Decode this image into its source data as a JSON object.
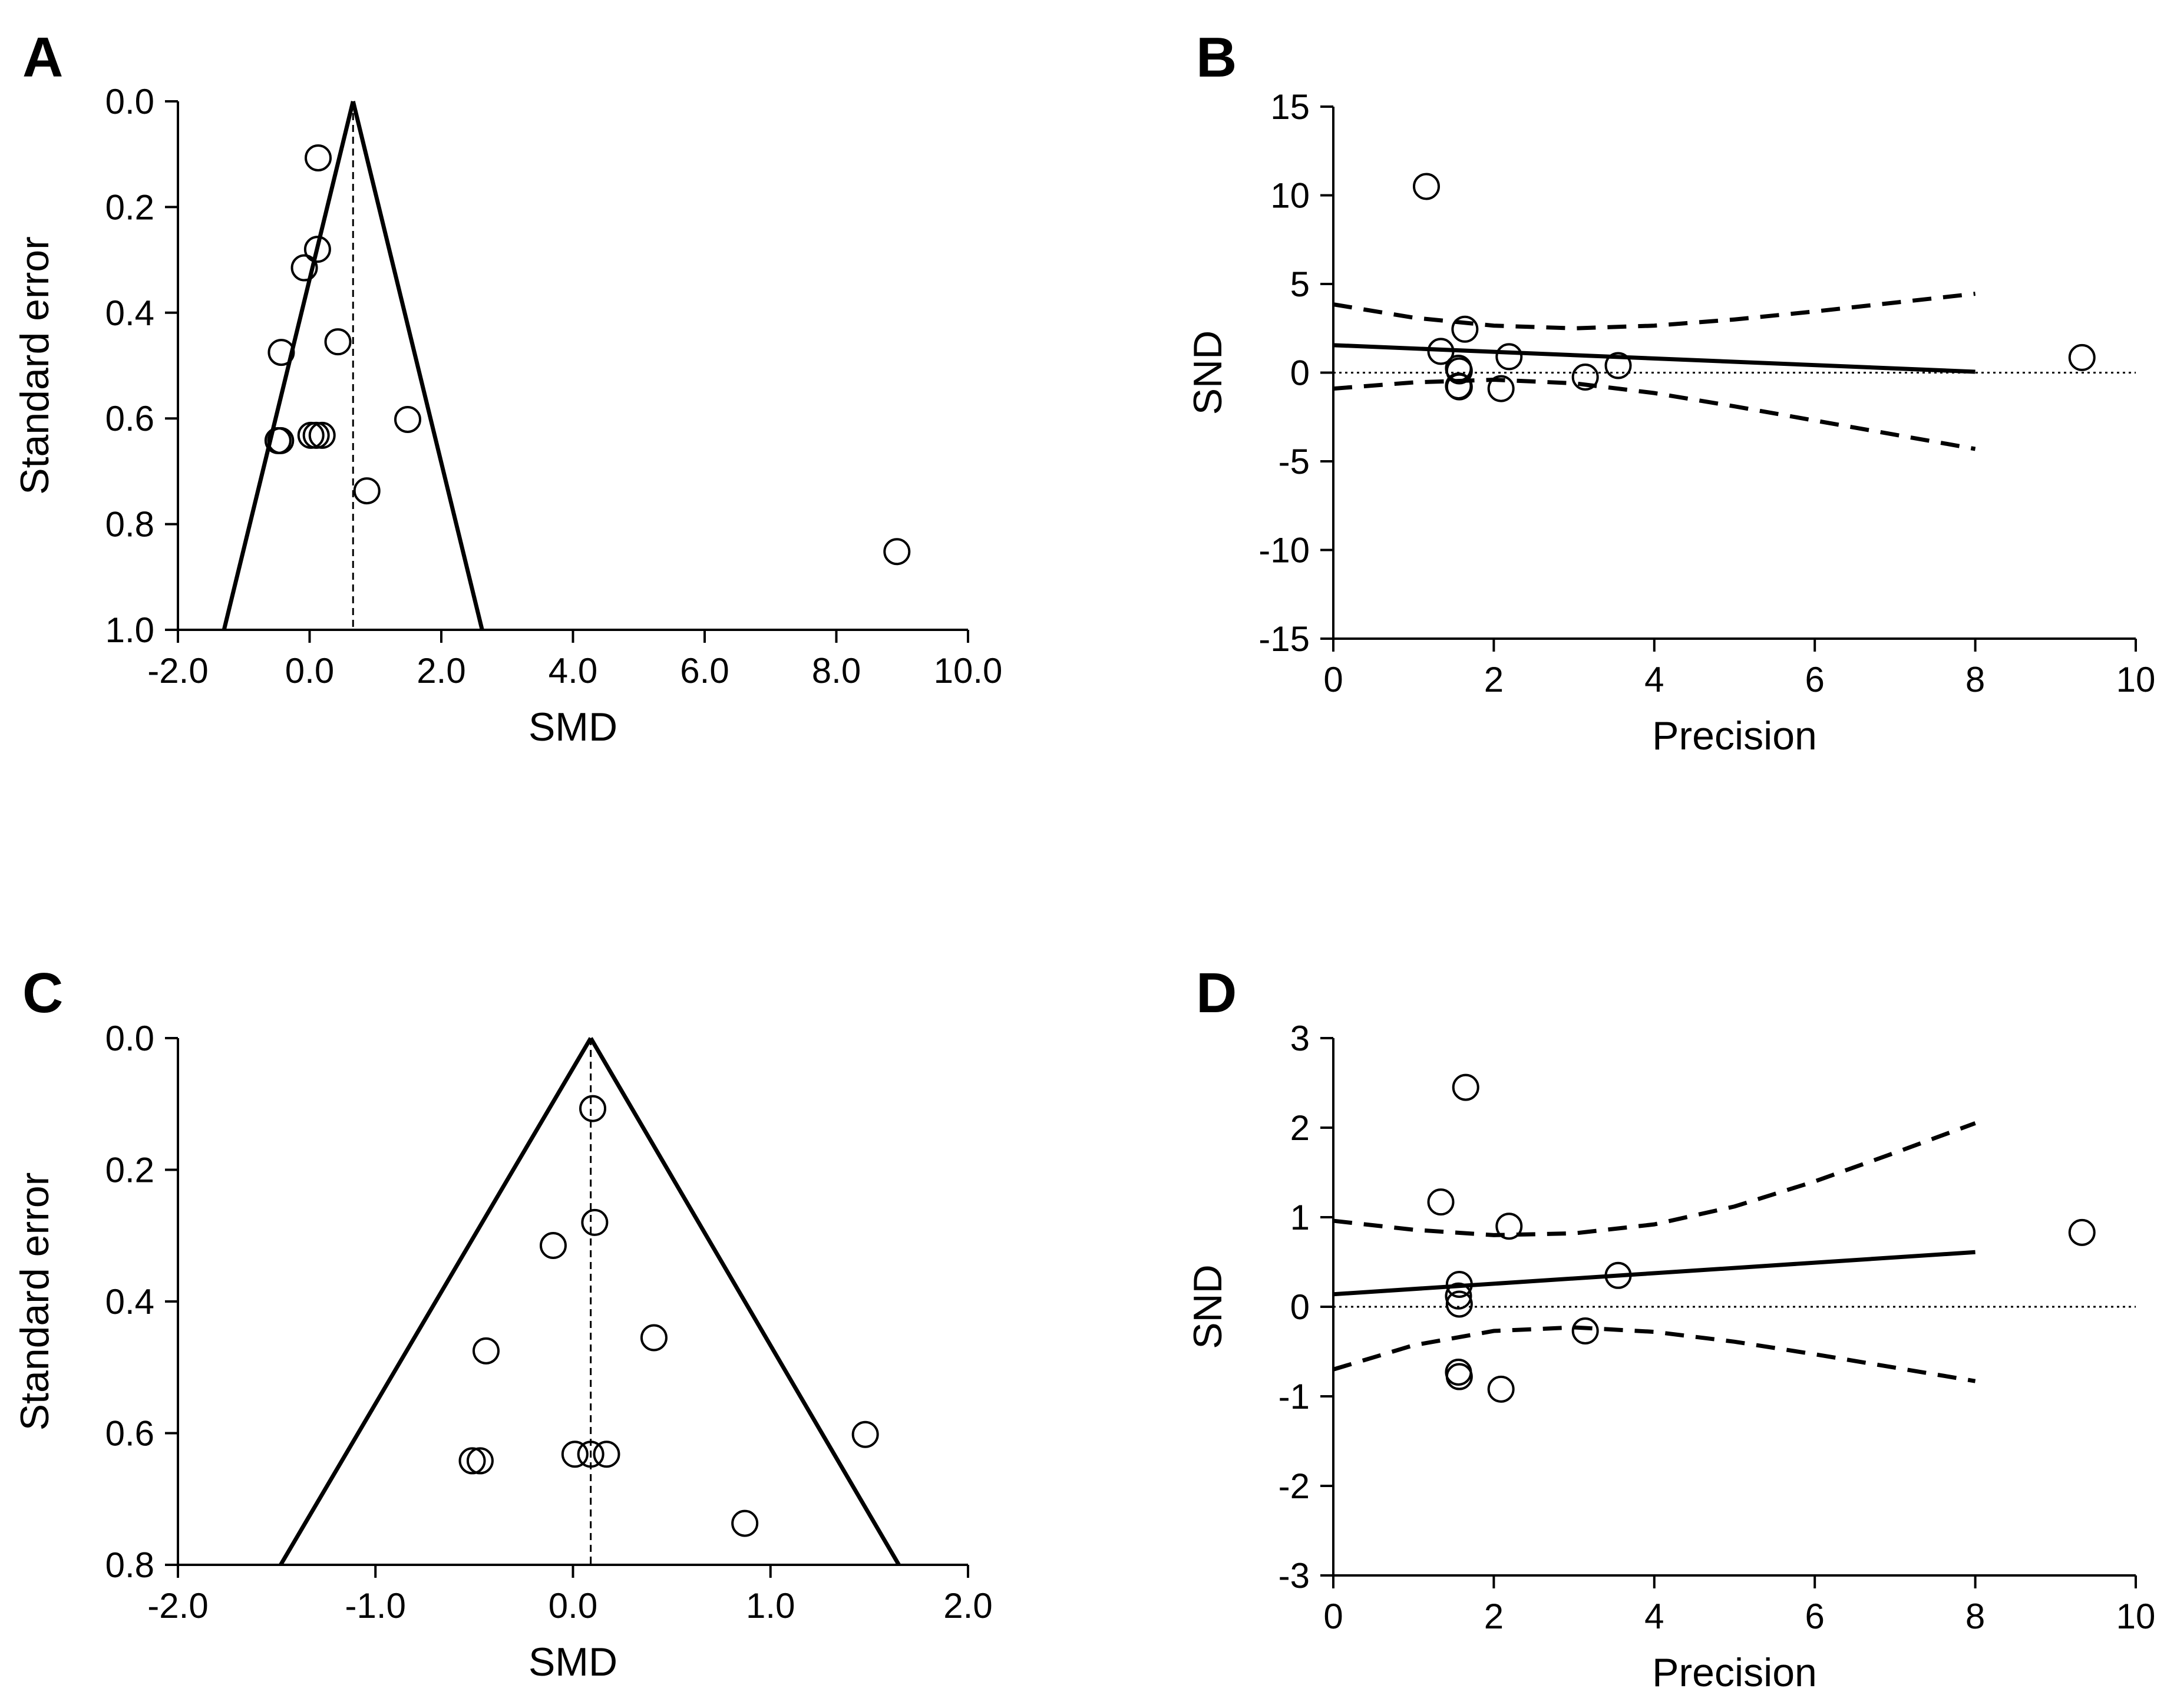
{
  "colors": {
    "ink": "#000000",
    "background": "#ffffff"
  },
  "chart_data": [
    {
      "panel": "A",
      "type": "scatter",
      "subtype": "funnel",
      "xlabel": "SMD",
      "ylabel": "Standard error",
      "xlim": [
        -2.0,
        10.0
      ],
      "ylim": [
        0.0,
        1.0
      ],
      "y_inverted": true,
      "xticks": [
        -2.0,
        0.0,
        2.0,
        4.0,
        6.0,
        8.0,
        10.0
      ],
      "xtick_labels": [
        "-2.0",
        "0.0",
        "2.0",
        "4.0",
        "6.0",
        "8.0",
        "10.0"
      ],
      "yticks": [
        0.0,
        0.2,
        0.4,
        0.6,
        0.8,
        1.0
      ],
      "ytick_labels": [
        "0.0",
        "0.2",
        "0.4",
        "0.6",
        "0.8",
        "1.0"
      ],
      "points": [
        {
          "x": 0.13,
          "y": 0.107
        },
        {
          "x": 0.12,
          "y": 0.28
        },
        {
          "x": -0.08,
          "y": 0.315
        },
        {
          "x": 0.43,
          "y": 0.455
        },
        {
          "x": -0.43,
          "y": 0.475
        },
        {
          "x": 1.49,
          "y": 0.602
        },
        {
          "x": 0.02,
          "y": 0.632
        },
        {
          "x": 0.1,
          "y": 0.632
        },
        {
          "x": 0.19,
          "y": 0.632
        },
        {
          "x": -0.48,
          "y": 0.642
        },
        {
          "x": -0.44,
          "y": 0.642
        },
        {
          "x": 0.87,
          "y": 0.737
        },
        {
          "x": 8.92,
          "y": 0.852
        }
      ],
      "funnel_apex": {
        "x": 0.66,
        "y": 0.0
      },
      "funnel_left_base": {
        "x": -1.3,
        "y": 1.0
      },
      "funnel_right_base": {
        "x": 2.62,
        "y": 1.0
      },
      "reference_line_x": 0.66
    },
    {
      "panel": "B",
      "type": "scatter",
      "subtype": "egger-regression",
      "xlabel": "Precision",
      "ylabel": "SND",
      "xlim": [
        0,
        10
      ],
      "ylim": [
        -15,
        15
      ],
      "xticks": [
        0,
        2,
        4,
        6,
        8,
        10
      ],
      "xtick_labels": [
        "0",
        "2",
        "4",
        "6",
        "8",
        "10"
      ],
      "yticks": [
        15,
        10,
        5,
        0,
        -5,
        -10,
        -15
      ],
      "ytick_labels": [
        "15",
        "10",
        "5",
        "0",
        "-5",
        "-10",
        "-15"
      ],
      "points": [
        {
          "x": 1.16,
          "y": 10.5
        },
        {
          "x": 1.34,
          "y": 1.2
        },
        {
          "x": 1.64,
          "y": 2.45
        },
        {
          "x": 1.56,
          "y": 0.25
        },
        {
          "x": 1.57,
          "y": 0.1
        },
        {
          "x": 1.56,
          "y": -0.75
        },
        {
          "x": 1.57,
          "y": -0.8
        },
        {
          "x": 2.09,
          "y": -0.9
        },
        {
          "x": 2.19,
          "y": 0.9
        },
        {
          "x": 3.14,
          "y": -0.25
        },
        {
          "x": 3.55,
          "y": 0.4
        },
        {
          "x": 9.33,
          "y": 0.85
        }
      ],
      "regression_line": [
        {
          "x": 0,
          "y": 1.55
        },
        {
          "x": 8,
          "y": 0.05
        }
      ],
      "ci_upper": [
        {
          "x": 0,
          "y": 3.85
        },
        {
          "x": 1,
          "y": 3.1
        },
        {
          "x": 2,
          "y": 2.65
        },
        {
          "x": 3,
          "y": 2.5
        },
        {
          "x": 4,
          "y": 2.65
        },
        {
          "x": 5,
          "y": 3.0
        },
        {
          "x": 6,
          "y": 3.45
        },
        {
          "x": 7,
          "y": 3.95
        },
        {
          "x": 8,
          "y": 4.45
        }
      ],
      "ci_lower": [
        {
          "x": 0,
          "y": -0.9
        },
        {
          "x": 1,
          "y": -0.55
        },
        {
          "x": 2,
          "y": -0.4
        },
        {
          "x": 3,
          "y": -0.6
        },
        {
          "x": 4,
          "y": -1.15
        },
        {
          "x": 5,
          "y": -1.9
        },
        {
          "x": 6,
          "y": -2.7
        },
        {
          "x": 7,
          "y": -3.5
        },
        {
          "x": 8,
          "y": -4.3
        }
      ],
      "reference_line_y": 0
    },
    {
      "panel": "C",
      "type": "scatter",
      "subtype": "funnel",
      "xlabel": "SMD",
      "ylabel": "Standard error",
      "xlim": [
        -2.0,
        2.0
      ],
      "ylim": [
        0.0,
        0.8
      ],
      "y_inverted": true,
      "xticks": [
        -2.0,
        -1.0,
        0.0,
        1.0,
        2.0
      ],
      "xtick_labels": [
        "-2.0",
        "-1.0",
        "0.0",
        "1.0",
        "2.0"
      ],
      "yticks": [
        0.0,
        0.2,
        0.4,
        0.6,
        0.8
      ],
      "ytick_labels": [
        "0.0",
        "0.2",
        "0.4",
        "0.6",
        "0.8"
      ],
      "points": [
        {
          "x": 0.1,
          "y": 0.107
        },
        {
          "x": 0.11,
          "y": 0.28
        },
        {
          "x": -0.1,
          "y": 0.315
        },
        {
          "x": 0.41,
          "y": 0.455
        },
        {
          "x": -0.44,
          "y": 0.475
        },
        {
          "x": 1.48,
          "y": 0.602
        },
        {
          "x": 0.01,
          "y": 0.632
        },
        {
          "x": 0.09,
          "y": 0.632
        },
        {
          "x": 0.17,
          "y": 0.632
        },
        {
          "x": -0.51,
          "y": 0.642
        },
        {
          "x": -0.47,
          "y": 0.642
        },
        {
          "x": 0.87,
          "y": 0.737
        }
      ],
      "funnel_apex": {
        "x": 0.09,
        "y": 0.0
      },
      "funnel_left_base": {
        "x": -1.48,
        "y": 0.8
      },
      "funnel_right_base": {
        "x": 1.65,
        "y": 0.8
      },
      "reference_line_x": 0.09
    },
    {
      "panel": "D",
      "type": "scatter",
      "subtype": "egger-regression",
      "xlabel": "Precision",
      "ylabel": "SND",
      "xlim": [
        0,
        10
      ],
      "ylim": [
        -3,
        3
      ],
      "xticks": [
        0,
        2,
        4,
        6,
        8,
        10
      ],
      "xtick_labels": [
        "0",
        "2",
        "4",
        "6",
        "8",
        "10"
      ],
      "yticks": [
        3,
        2,
        1,
        0,
        -1,
        -2,
        -3
      ],
      "ytick_labels": [
        "3",
        "2",
        "1",
        "0",
        "-1",
        "-2",
        "-3"
      ],
      "points": [
        {
          "x": 1.65,
          "y": 2.45
        },
        {
          "x": 1.34,
          "y": 1.17
        },
        {
          "x": 2.19,
          "y": 0.9
        },
        {
          "x": 9.33,
          "y": 0.83
        },
        {
          "x": 3.55,
          "y": 0.35
        },
        {
          "x": 1.57,
          "y": 0.25
        },
        {
          "x": 1.56,
          "y": 0.12
        },
        {
          "x": 1.57,
          "y": 0.03
        },
        {
          "x": 3.14,
          "y": -0.27
        },
        {
          "x": 1.56,
          "y": -0.73
        },
        {
          "x": 1.57,
          "y": -0.78
        },
        {
          "x": 2.09,
          "y": -0.92
        }
      ],
      "regression_line": [
        {
          "x": 0,
          "y": 0.14
        },
        {
          "x": 8,
          "y": 0.61
        }
      ],
      "ci_upper": [
        {
          "x": 0,
          "y": 0.96
        },
        {
          "x": 1,
          "y": 0.86
        },
        {
          "x": 2,
          "y": 0.8
        },
        {
          "x": 3,
          "y": 0.82
        },
        {
          "x": 4,
          "y": 0.92
        },
        {
          "x": 5,
          "y": 1.12
        },
        {
          "x": 6,
          "y": 1.4
        },
        {
          "x": 7,
          "y": 1.72
        },
        {
          "x": 8,
          "y": 2.05
        }
      ],
      "ci_lower": [
        {
          "x": 0,
          "y": -0.7
        },
        {
          "x": 1,
          "y": -0.43
        },
        {
          "x": 2,
          "y": -0.27
        },
        {
          "x": 3,
          "y": -0.23
        },
        {
          "x": 4,
          "y": -0.28
        },
        {
          "x": 5,
          "y": -0.39
        },
        {
          "x": 6,
          "y": -0.53
        },
        {
          "x": 7,
          "y": -0.68
        },
        {
          "x": 8,
          "y": -0.83
        }
      ],
      "reference_line_y": 0
    }
  ]
}
